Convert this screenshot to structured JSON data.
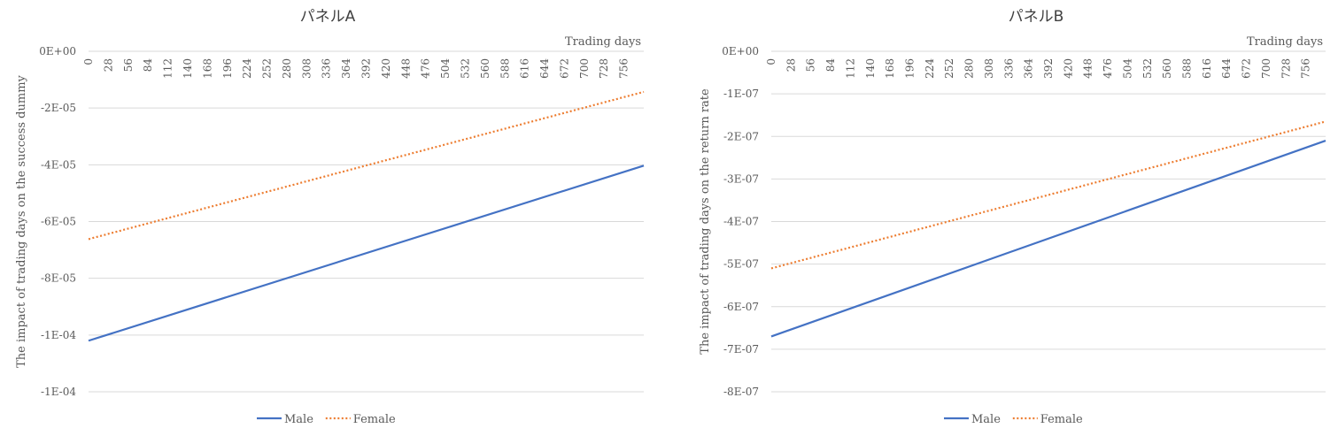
{
  "chart_data": [
    {
      "type": "line",
      "title": "パネルA",
      "xlabel": "Trading days",
      "ylabel": "The impact of trading days on the success dummy",
      "x_ticks": [
        "0",
        "28",
        "56",
        "84",
        "112",
        "140",
        "168",
        "196",
        "224",
        "252",
        "280",
        "308",
        "336",
        "364",
        "392",
        "420",
        "448",
        "476",
        "504",
        "532",
        "560",
        "588",
        "616",
        "644",
        "672",
        "700",
        "728",
        "756"
      ],
      "y_ticks": [
        "0E+00",
        "-2E-05",
        "-4E-05",
        "-6E-05",
        "-8E-05",
        "-1E-04",
        "-1E-04"
      ],
      "ylim": [
        -0.00012,
        0
      ],
      "xlim": [
        0,
        784
      ],
      "grid": true,
      "legend": "bottom",
      "series": [
        {
          "name": "Male",
          "color": "#4472c4",
          "style": "solid",
          "x": [
            0,
            784
          ],
          "y": [
            -0.000102,
            -4.03e-05
          ]
        },
        {
          "name": "Female",
          "color": "#ed7d31",
          "style": "dotted",
          "x": [
            0,
            784
          ],
          "y": [
            -6.62e-05,
            -1.43e-05
          ]
        }
      ]
    },
    {
      "type": "line",
      "title": "パネルB",
      "xlabel": "Trading days",
      "ylabel": "The impact of trading days on the return rate",
      "x_ticks": [
        "0",
        "28",
        "56",
        "84",
        "112",
        "140",
        "168",
        "196",
        "224",
        "252",
        "280",
        "308",
        "336",
        "364",
        "392",
        "420",
        "448",
        "476",
        "504",
        "532",
        "560",
        "588",
        "616",
        "644",
        "672",
        "700",
        "728",
        "756"
      ],
      "y_ticks": [
        "0E+00",
        "-1E-07",
        "-2E-07",
        "-3E-07",
        "-4E-07",
        "-5E-07",
        "-6E-07",
        "-7E-07",
        "-8E-07"
      ],
      "ylim": [
        -8e-07,
        0
      ],
      "xlim": [
        0,
        784
      ],
      "grid": true,
      "legend": "bottom",
      "series": [
        {
          "name": "Male",
          "color": "#4472c4",
          "style": "solid",
          "x": [
            0,
            784
          ],
          "y": [
            -6.7e-07,
            -2.1e-07
          ]
        },
        {
          "name": "Female",
          "color": "#ed7d31",
          "style": "dotted",
          "x": [
            0,
            784
          ],
          "y": [
            -5.1e-07,
            -1.65e-07
          ]
        }
      ]
    }
  ]
}
